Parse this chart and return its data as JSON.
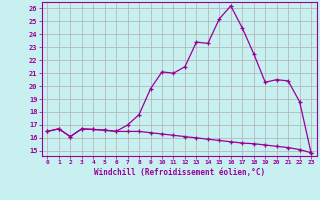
{
  "xlabel": "Windchill (Refroidissement éolien,°C)",
  "bg_color": "#c8f0f0",
  "line_color": "#990099",
  "grid_color": "#b0b0b0",
  "xlim": [
    -0.5,
    23.5
  ],
  "ylim": [
    14.6,
    26.5
  ],
  "xticks": [
    0,
    1,
    2,
    3,
    4,
    5,
    6,
    7,
    8,
    9,
    10,
    11,
    12,
    13,
    14,
    15,
    16,
    17,
    18,
    19,
    20,
    21,
    22,
    23
  ],
  "yticks": [
    15,
    16,
    17,
    18,
    19,
    20,
    21,
    22,
    23,
    24,
    25,
    26
  ],
  "curve1_x": [
    0,
    1,
    2,
    3,
    4,
    5,
    6,
    7,
    8,
    9,
    10,
    11,
    12,
    13,
    14,
    15,
    16,
    17,
    18,
    19,
    20,
    21,
    22,
    23
  ],
  "curve1_y": [
    16.5,
    16.7,
    16.1,
    16.7,
    16.65,
    16.6,
    16.5,
    16.5,
    16.5,
    16.4,
    16.3,
    16.2,
    16.1,
    16.0,
    15.9,
    15.8,
    15.7,
    15.6,
    15.55,
    15.45,
    15.35,
    15.25,
    15.1,
    14.85
  ],
  "curve2_x": [
    0,
    1,
    2,
    3,
    4,
    5,
    6,
    7,
    8,
    9,
    10,
    11,
    12,
    13,
    14,
    15,
    16,
    17,
    18,
    19,
    20,
    21,
    22,
    23
  ],
  "curve2_y": [
    16.5,
    16.7,
    16.1,
    16.7,
    16.65,
    16.6,
    16.5,
    17.0,
    17.8,
    19.8,
    21.1,
    21.0,
    21.5,
    23.4,
    23.3,
    25.2,
    26.2,
    24.5,
    22.5,
    20.3,
    20.5,
    20.4,
    18.8,
    14.85
  ]
}
